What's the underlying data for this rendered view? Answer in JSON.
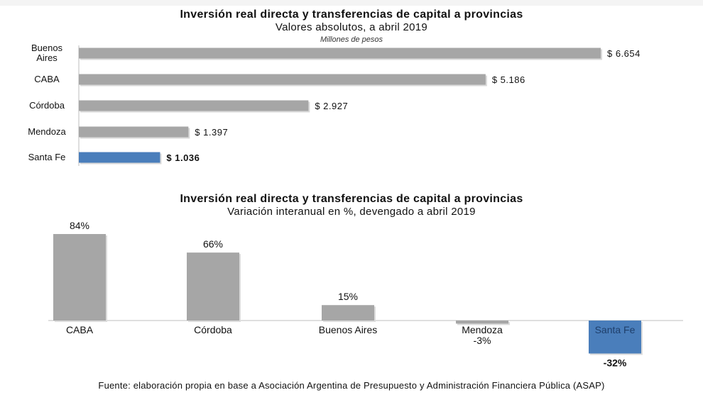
{
  "chart_data": [
    {
      "type": "bar",
      "orientation": "horizontal",
      "title": "Inversión real directa y transferencias de capital a provincias",
      "subtitle": "Valores absolutos, a abril 2019",
      "units": "Millones de pesos",
      "categories": [
        "Buenos\nAires",
        "CABA",
        "Córdoba",
        "Mendoza",
        "Santa Fe"
      ],
      "values": [
        6654,
        5186,
        2927,
        1397,
        1036
      ],
      "value_labels": [
        "$ 6.654",
        "$ 5.186",
        "$ 2.927",
        "$ 1.397",
        "$ 1.036"
      ],
      "highlight": "Santa Fe",
      "xlim": [
        0,
        6654
      ],
      "colors": {
        "default": "#a6a6a6",
        "highlight": "#4a7ebb"
      },
      "grid": false
    },
    {
      "type": "bar",
      "orientation": "vertical",
      "title": "Inversión real directa y transferencias de capital a provincias",
      "subtitle": "Variación interanual en %, devengado a abril 2019",
      "categories": [
        "CABA",
        "Córdoba",
        "Buenos Aires",
        "Mendoza",
        "Santa Fe"
      ],
      "values": [
        84,
        66,
        15,
        -3,
        -32
      ],
      "value_labels": [
        "84%",
        "66%",
        "15%",
        "-3%",
        "-32%"
      ],
      "highlight": "Santa Fe",
      "ylim": [
        -32,
        84
      ],
      "colors": {
        "default": "#a6a6a6",
        "highlight": "#4a7ebb"
      },
      "grid": false
    }
  ],
  "footer": {
    "source": "Fuente: elaboración propia en base a Asociación Argentina de Presupuesto y Administración Financiera Pública (ASAP)"
  }
}
